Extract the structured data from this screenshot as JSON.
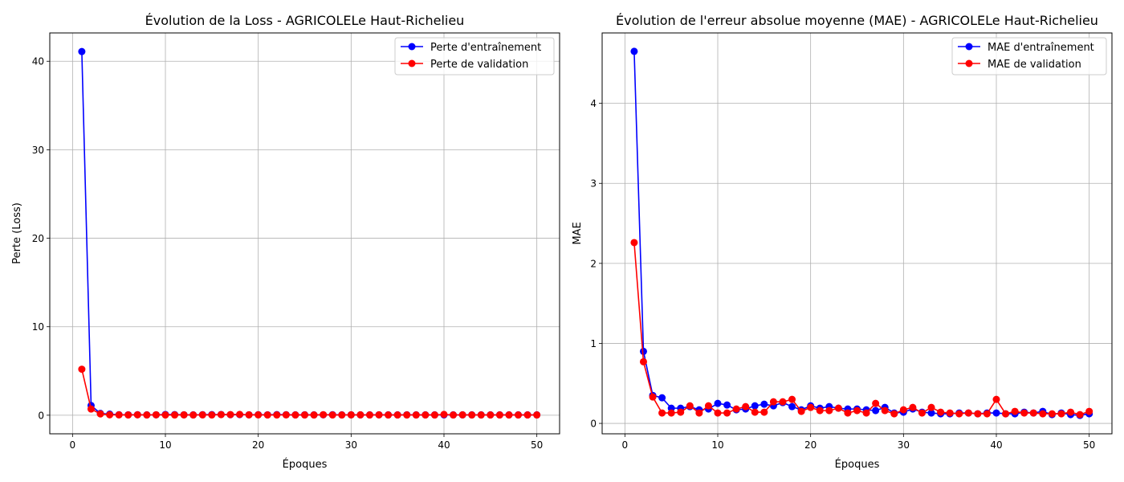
{
  "colors": {
    "train": "#0000ff",
    "val": "#ff0000",
    "grid": "#b0b0b0",
    "axis": "#000000"
  },
  "chart_data": [
    {
      "type": "line",
      "title": "Évolution de la Loss - AGRICOLELe Haut-Richelieu",
      "xlabel": "Époques",
      "ylabel": "Perte (Loss)",
      "xlim": [
        -2.45,
        52.45
      ],
      "ylim": [
        -2.1,
        43.2
      ],
      "xticks": [
        0,
        10,
        20,
        30,
        40,
        50
      ],
      "xtick_labels": [
        "0",
        "10",
        "20",
        "30",
        "40",
        "50"
      ],
      "yticks": [
        0,
        10,
        20,
        30,
        40
      ],
      "ytick_labels": [
        "0",
        "10",
        "20",
        "30",
        "40"
      ],
      "grid": true,
      "legend_position": "upper right",
      "x": [
        1,
        2,
        3,
        4,
        5,
        6,
        7,
        8,
        9,
        10,
        11,
        12,
        13,
        14,
        15,
        16,
        17,
        18,
        19,
        20,
        21,
        22,
        23,
        24,
        25,
        26,
        27,
        28,
        29,
        30,
        31,
        32,
        33,
        34,
        35,
        36,
        37,
        38,
        39,
        40,
        41,
        42,
        43,
        44,
        45,
        46,
        47,
        48,
        49,
        50
      ],
      "series": [
        {
          "name": "Perte d'entraînement",
          "color": "#0000ff",
          "values": [
            41.1,
            1.1,
            0.2,
            0.12,
            0.06,
            0.05,
            0.06,
            0.04,
            0.05,
            0.08,
            0.07,
            0.05,
            0.04,
            0.06,
            0.07,
            0.08,
            0.06,
            0.07,
            0.05,
            0.06,
            0.05,
            0.07,
            0.06,
            0.04,
            0.05,
            0.04,
            0.05,
            0.06,
            0.04,
            0.05,
            0.04,
            0.04,
            0.05,
            0.04,
            0.04,
            0.05,
            0.04,
            0.04,
            0.04,
            0.04,
            0.04,
            0.04,
            0.04,
            0.04,
            0.04,
            0.04,
            0.04,
            0.04,
            0.04,
            0.04
          ]
        },
        {
          "name": "Perte de validation",
          "color": "#ff0000",
          "values": [
            5.2,
            0.7,
            0.15,
            0.05,
            0.04,
            0.03,
            0.05,
            0.03,
            0.05,
            0.03,
            0.03,
            0.04,
            0.03,
            0.04,
            0.03,
            0.07,
            0.07,
            0.09,
            0.04,
            0.04,
            0.03,
            0.03,
            0.04,
            0.03,
            0.03,
            0.03,
            0.06,
            0.03,
            0.03,
            0.04,
            0.04,
            0.03,
            0.04,
            0.03,
            0.03,
            0.03,
            0.03,
            0.03,
            0.03,
            0.09,
            0.03,
            0.04,
            0.03,
            0.03,
            0.03,
            0.03,
            0.03,
            0.03,
            0.03,
            0.03
          ]
        }
      ]
    },
    {
      "type": "line",
      "title": "Évolution de l'erreur absolue moyenne (MAE) - AGRICOLELe Haut-Richelieu",
      "xlabel": "Époques",
      "ylabel": "MAE",
      "xlim": [
        -2.45,
        52.45
      ],
      "ylim": [
        -0.13,
        4.88
      ],
      "xticks": [
        0,
        10,
        20,
        30,
        40,
        50
      ],
      "xtick_labels": [
        "0",
        "10",
        "20",
        "30",
        "40",
        "50"
      ],
      "yticks": [
        0,
        1,
        2,
        3,
        4
      ],
      "ytick_labels": [
        "0",
        "1",
        "2",
        "3",
        "4"
      ],
      "grid": true,
      "legend_position": "upper right",
      "x": [
        1,
        2,
        3,
        4,
        5,
        6,
        7,
        8,
        9,
        10,
        11,
        12,
        13,
        14,
        15,
        16,
        17,
        18,
        19,
        20,
        21,
        22,
        23,
        24,
        25,
        26,
        27,
        28,
        29,
        30,
        31,
        32,
        33,
        34,
        35,
        36,
        37,
        38,
        39,
        40,
        41,
        42,
        43,
        44,
        45,
        46,
        47,
        48,
        49,
        50
      ],
      "series": [
        {
          "name": "MAE d'entraînement",
          "color": "#0000ff",
          "values": [
            4.65,
            0.9,
            0.35,
            0.32,
            0.19,
            0.19,
            0.21,
            0.17,
            0.18,
            0.25,
            0.23,
            0.17,
            0.18,
            0.22,
            0.24,
            0.22,
            0.26,
            0.21,
            0.17,
            0.22,
            0.19,
            0.21,
            0.19,
            0.18,
            0.18,
            0.17,
            0.16,
            0.2,
            0.13,
            0.14,
            0.18,
            0.14,
            0.13,
            0.12,
            0.12,
            0.13,
            0.13,
            0.12,
            0.13,
            0.13,
            0.12,
            0.12,
            0.14,
            0.13,
            0.15,
            0.11,
            0.13,
            0.11,
            0.1,
            0.12
          ]
        },
        {
          "name": "MAE de validation",
          "color": "#ff0000",
          "values": [
            2.26,
            0.77,
            0.33,
            0.13,
            0.13,
            0.14,
            0.22,
            0.13,
            0.22,
            0.13,
            0.13,
            0.18,
            0.21,
            0.14,
            0.14,
            0.27,
            0.27,
            0.3,
            0.15,
            0.2,
            0.16,
            0.16,
            0.19,
            0.13,
            0.16,
            0.13,
            0.25,
            0.16,
            0.12,
            0.17,
            0.2,
            0.13,
            0.2,
            0.14,
            0.13,
            0.12,
            0.13,
            0.12,
            0.12,
            0.3,
            0.12,
            0.15,
            0.13,
            0.13,
            0.12,
            0.12,
            0.12,
            0.14,
            0.11,
            0.15
          ]
        }
      ]
    }
  ]
}
